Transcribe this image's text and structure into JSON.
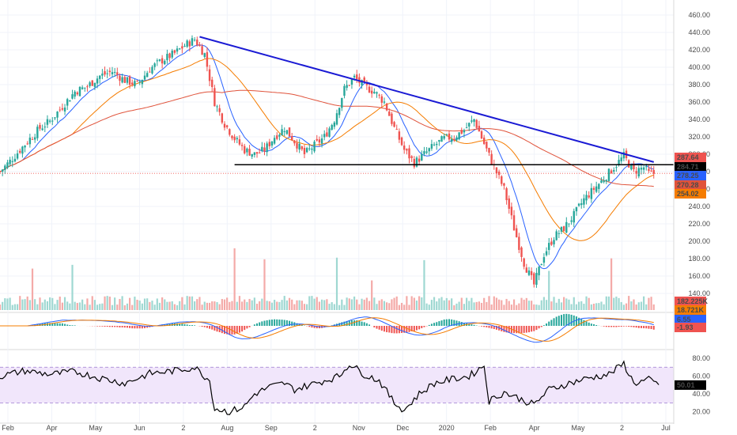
{
  "chart_data": {
    "type": "candlestick",
    "colors": {
      "up": "#26a69a",
      "down": "#ef5350",
      "ma_fast": "#2962ff",
      "ma_mid": "#f57c00",
      "ma_slow": "#e0533b",
      "trendline": "#1a1ad4",
      "support": "#000000",
      "rsi": "#000000",
      "rsi_band": "#f1e6fb",
      "macd": "#2962ff",
      "signal": "#f57c00"
    },
    "price_axis": {
      "ticks": [
        "460.00",
        "440.00",
        "420.00",
        "400.00",
        "380.00",
        "360.00",
        "340.00",
        "320.00",
        "300.00",
        "280.00",
        "260.00",
        "240.00",
        "220.00",
        "200.00",
        "180.00",
        "160.00",
        "140.00"
      ],
      "tick_values": [
        460,
        440,
        420,
        400,
        380,
        360,
        340,
        320,
        300,
        280,
        260,
        240,
        220,
        200,
        180,
        160,
        140
      ],
      "ylim": [
        130,
        470
      ]
    },
    "time_axis": {
      "labels": [
        "Feb",
        "Apr",
        "May",
        "Jun",
        "2",
        "Aug",
        "Sep",
        "2",
        "Nov",
        "Dec",
        "2020",
        "Feb",
        "Apr",
        "May",
        "2",
        "Jul"
      ]
    },
    "price_labels": [
      {
        "value": "287.64",
        "color": "#ef5350",
        "text_color": "#ffffff"
      },
      {
        "value": "284.71",
        "color": "#000000",
        "text_color": "#ffffff"
      },
      {
        "value": "278.25",
        "color": "#2962ff",
        "text_color": "#ffffff"
      },
      {
        "value": "270.28",
        "color": "#e0533b",
        "text_color": "#ffffff"
      },
      {
        "value": "254.02",
        "color": "#f57c00",
        "text_color": "#ffffff"
      }
    ],
    "close_series": [
      {
        "t": 0,
        "p": 280
      },
      {
        "t": 4,
        "p": 292
      },
      {
        "t": 8,
        "p": 305
      },
      {
        "t": 12,
        "p": 318
      },
      {
        "t": 16,
        "p": 330
      },
      {
        "t": 20,
        "p": 338
      },
      {
        "t": 25,
        "p": 355
      },
      {
        "t": 30,
        "p": 372
      },
      {
        "t": 35,
        "p": 378
      },
      {
        "t": 40,
        "p": 390
      },
      {
        "t": 45,
        "p": 395
      },
      {
        "t": 50,
        "p": 385
      },
      {
        "t": 55,
        "p": 380
      },
      {
        "t": 60,
        "p": 398
      },
      {
        "t": 65,
        "p": 408
      },
      {
        "t": 70,
        "p": 416
      },
      {
        "t": 74,
        "p": 425
      },
      {
        "t": 78,
        "p": 432
      },
      {
        "t": 82,
        "p": 415
      },
      {
        "t": 86,
        "p": 360
      },
      {
        "t": 90,
        "p": 335
      },
      {
        "t": 94,
        "p": 318
      },
      {
        "t": 98,
        "p": 305
      },
      {
        "t": 102,
        "p": 300
      },
      {
        "t": 106,
        "p": 305
      },
      {
        "t": 110,
        "p": 320
      },
      {
        "t": 114,
        "p": 330
      },
      {
        "t": 118,
        "p": 315
      },
      {
        "t": 122,
        "p": 300
      },
      {
        "t": 126,
        "p": 310
      },
      {
        "t": 130,
        "p": 320
      },
      {
        "t": 134,
        "p": 340
      },
      {
        "t": 138,
        "p": 375
      },
      {
        "t": 142,
        "p": 388
      },
      {
        "t": 146,
        "p": 378
      },
      {
        "t": 150,
        "p": 372
      },
      {
        "t": 154,
        "p": 360
      },
      {
        "t": 158,
        "p": 330
      },
      {
        "t": 162,
        "p": 305
      },
      {
        "t": 166,
        "p": 290
      },
      {
        "t": 170,
        "p": 300
      },
      {
        "t": 174,
        "p": 310
      },
      {
        "t": 178,
        "p": 318
      },
      {
        "t": 182,
        "p": 320
      },
      {
        "t": 186,
        "p": 328
      },
      {
        "t": 190,
        "p": 340
      },
      {
        "t": 194,
        "p": 312
      },
      {
        "t": 198,
        "p": 285
      },
      {
        "t": 202,
        "p": 260
      },
      {
        "t": 206,
        "p": 215
      },
      {
        "t": 210,
        "p": 175
      },
      {
        "t": 214,
        "p": 150
      },
      {
        "t": 218,
        "p": 185
      },
      {
        "t": 222,
        "p": 205
      },
      {
        "t": 226,
        "p": 215
      },
      {
        "t": 230,
        "p": 230
      },
      {
        "t": 234,
        "p": 248
      },
      {
        "t": 238,
        "p": 260
      },
      {
        "t": 242,
        "p": 272
      },
      {
        "t": 246,
        "p": 285
      },
      {
        "t": 250,
        "p": 298
      },
      {
        "t": 254,
        "p": 280
      },
      {
        "t": 258,
        "p": 285
      },
      {
        "t": 260,
        "p": 278
      }
    ],
    "trendline": {
      "start": {
        "t": 80,
        "p": 435
      },
      "end": {
        "t": 262,
        "p": 291
      }
    },
    "support": {
      "start": {
        "t": 94,
        "p": 288
      },
      "end": {
        "t": 264,
        "p": 288
      }
    },
    "volume_labels": [
      {
        "value": "182.225K",
        "color": "#ef5350"
      },
      {
        "value": "18.721K",
        "color": "#f57c00"
      }
    ],
    "macd_labels": [
      {
        "value": "6.55",
        "color": "#2962ff"
      },
      {
        "value": "-1.93",
        "color": "#ef5350"
      }
    ],
    "rsi": {
      "ticks": [
        "80.00",
        "60.00",
        "40.00",
        "20.00"
      ],
      "tick_values": [
        80,
        60,
        40,
        20
      ],
      "ylim": [
        10,
        88
      ],
      "upper_band": 70,
      "lower_band": 30,
      "current": "50.01",
      "series": [
        {
          "t": 0,
          "v": 60
        },
        {
          "t": 10,
          "v": 66
        },
        {
          "t": 20,
          "v": 62
        },
        {
          "t": 30,
          "v": 65
        },
        {
          "t": 40,
          "v": 58
        },
        {
          "t": 50,
          "v": 52
        },
        {
          "t": 60,
          "v": 63
        },
        {
          "t": 70,
          "v": 66
        },
        {
          "t": 78,
          "v": 70
        },
        {
          "t": 84,
          "v": 55
        },
        {
          "t": 86,
          "v": 24
        },
        {
          "t": 92,
          "v": 20
        },
        {
          "t": 98,
          "v": 26
        },
        {
          "t": 102,
          "v": 40
        },
        {
          "t": 108,
          "v": 48
        },
        {
          "t": 114,
          "v": 52
        },
        {
          "t": 118,
          "v": 45
        },
        {
          "t": 124,
          "v": 50
        },
        {
          "t": 130,
          "v": 55
        },
        {
          "t": 136,
          "v": 60
        },
        {
          "t": 140,
          "v": 74
        },
        {
          "t": 146,
          "v": 62
        },
        {
          "t": 152,
          "v": 55
        },
        {
          "t": 158,
          "v": 30
        },
        {
          "t": 162,
          "v": 22
        },
        {
          "t": 168,
          "v": 40
        },
        {
          "t": 174,
          "v": 52
        },
        {
          "t": 180,
          "v": 56
        },
        {
          "t": 188,
          "v": 60
        },
        {
          "t": 194,
          "v": 72
        },
        {
          "t": 196,
          "v": 32
        },
        {
          "t": 202,
          "v": 42
        },
        {
          "t": 208,
          "v": 35
        },
        {
          "t": 214,
          "v": 28
        },
        {
          "t": 220,
          "v": 45
        },
        {
          "t": 228,
          "v": 52
        },
        {
          "t": 236,
          "v": 58
        },
        {
          "t": 244,
          "v": 62
        },
        {
          "t": 250,
          "v": 74
        },
        {
          "t": 254,
          "v": 52
        },
        {
          "t": 260,
          "v": 56
        },
        {
          "t": 264,
          "v": 50
        }
      ]
    }
  }
}
